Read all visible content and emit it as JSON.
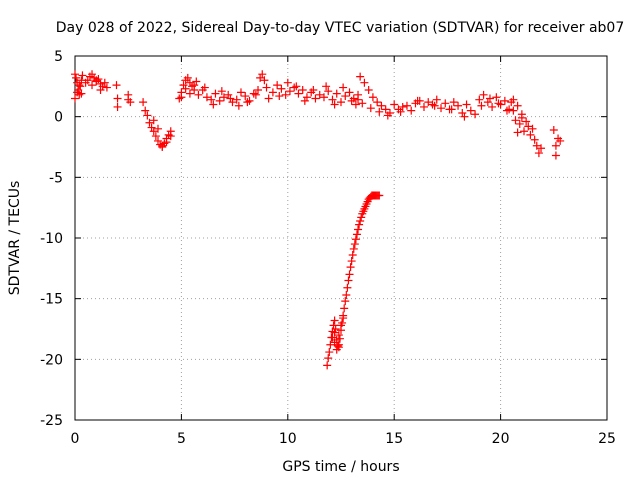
{
  "chart_data": {
    "type": "scatter",
    "title": "Day 028 of 2022, Sidereal Day-to-day VTEC variation (SDTVAR) for receiver ab07",
    "xlabel": "GPS time / hours",
    "ylabel": "SDTVAR / TECUs",
    "xlim": [
      0,
      25
    ],
    "ylim": [
      -25,
      5
    ],
    "xticks": [
      0,
      5,
      10,
      15,
      20,
      25
    ],
    "yticks": [
      5,
      0,
      -5,
      -10,
      -15,
      -20,
      -25
    ],
    "x_tick_labels": [
      "0",
      "5",
      "10",
      "15",
      "20",
      "25"
    ],
    "y_tick_labels": [
      "5",
      "0",
      "-5",
      "-10",
      "-15",
      "-20",
      "-25"
    ],
    "grid": true,
    "marker": "plus",
    "color": "#ff0000",
    "series": [
      {
        "name": "SDTVAR",
        "x": [
          0.0,
          0.05,
          0.1,
          0.15,
          0.2,
          0.25,
          0.3,
          0.35,
          0.0,
          0.1,
          0.2,
          0.3,
          0.5,
          0.6,
          0.7,
          0.8,
          0.9,
          1.0,
          1.1,
          1.2,
          1.3,
          1.4,
          1.5,
          0.8,
          1.0,
          1.2,
          1.95,
          2.0,
          2.0,
          2.5,
          2.6,
          2.5,
          3.2,
          3.3,
          3.4,
          3.5,
          3.6,
          3.7,
          3.8,
          3.9,
          4.0,
          4.1,
          4.2,
          4.3,
          4.4,
          4.5,
          3.7,
          3.9,
          4.1,
          4.3,
          4.5,
          4.9,
          5.0,
          5.1,
          5.2,
          5.3,
          5.4,
          5.5,
          5.6,
          5.7,
          5.0,
          5.2,
          5.4,
          5.6,
          5.8,
          6.0,
          6.2,
          6.4,
          6.6,
          6.8,
          7.0,
          7.2,
          7.4,
          6.1,
          6.5,
          6.9,
          7.3,
          7.6,
          7.8,
          8.0,
          8.2,
          8.4,
          8.6,
          8.7,
          8.8,
          8.9,
          9.0,
          9.1,
          7.7,
          8.1,
          8.5,
          9.3,
          9.5,
          9.7,
          9.9,
          10.1,
          10.3,
          10.5,
          10.7,
          10.9,
          11.1,
          11.3,
          11.5,
          9.6,
          10.0,
          10.4,
          10.8,
          11.2,
          11.7,
          11.9,
          12.1,
          12.3,
          12.5,
          12.7,
          12.9,
          13.1,
          13.3,
          11.8,
          12.2,
          12.6,
          13.0,
          13.4,
          13.6,
          13.8,
          14.0,
          14.2,
          14.4,
          14.6,
          14.8,
          13.5,
          13.9,
          14.3,
          14.7,
          13.2,
          13.3,
          15.0,
          15.2,
          15.4,
          15.6,
          15.8,
          16.0,
          16.2,
          16.4,
          16.6,
          16.8,
          17.0,
          17.2,
          17.4,
          17.6,
          17.8,
          18.0,
          18.2,
          18.4,
          18.6,
          18.8,
          15.3,
          16.1,
          16.9,
          17.7,
          18.3,
          19.0,
          19.2,
          19.4,
          19.6,
          19.8,
          20.0,
          20.2,
          20.4,
          19.1,
          19.5,
          19.9,
          20.3,
          20.5,
          20.6,
          20.7,
          20.8,
          20.9,
          21.0,
          21.1,
          21.2,
          21.3,
          21.4,
          21.5,
          21.6,
          21.7,
          21.8,
          21.9,
          20.6,
          20.8,
          21.0,
          22.5,
          22.6,
          22.7,
          22.8,
          22.6,
          11.85,
          11.9,
          11.95,
          12.0,
          12.05,
          12.1,
          12.15,
          12.2,
          12.25,
          12.3,
          12.35,
          12.4,
          12.45,
          12.5,
          12.55,
          12.6,
          12.65,
          12.7,
          12.75,
          12.8,
          12.85,
          12.9,
          12.95,
          13.0,
          13.05,
          13.1,
          13.15,
          13.2,
          13.25,
          13.3,
          13.35,
          13.4,
          13.45,
          13.5,
          13.55,
          13.6,
          13.65,
          13.7,
          13.75,
          13.8,
          13.85,
          13.9,
          13.95,
          14.0,
          14.05,
          14.1,
          14.15,
          14.2,
          14.25,
          14.3,
          12.1,
          12.2,
          12.3,
          12.4,
          12.5,
          12.6,
          12.2,
          12.4
        ],
        "y": [
          3.5,
          3.2,
          2.8,
          2.2,
          1.8,
          2.5,
          3.0,
          3.4,
          1.5,
          2.0,
          2.6,
          1.9,
          2.8,
          3.0,
          3.3,
          3.5,
          3.2,
          2.9,
          3.1,
          2.7,
          2.5,
          2.8,
          2.4,
          2.6,
          3.0,
          2.2,
          2.6,
          1.5,
          0.8,
          1.8,
          1.2,
          1.4,
          1.2,
          0.5,
          0.1,
          -0.5,
          -0.9,
          -1.2,
          -1.6,
          -2.0,
          -2.3,
          -2.5,
          -2.2,
          -1.8,
          -1.5,
          -1.2,
          -0.3,
          -1.0,
          -2.4,
          -2.1,
          -1.6,
          1.5,
          2.0,
          2.6,
          3.0,
          3.2,
          2.8,
          2.5,
          2.2,
          2.9,
          1.6,
          2.3,
          1.9,
          2.6,
          1.8,
          2.2,
          1.6,
          1.4,
          1.9,
          1.3,
          1.6,
          1.8,
          1.2,
          2.4,
          1.0,
          2.1,
          1.5,
          1.4,
          2.0,
          1.7,
          1.3,
          1.9,
          2.2,
          3.2,
          3.5,
          3.0,
          2.4,
          1.5,
          0.9,
          1.2,
          1.8,
          2.0,
          2.6,
          2.3,
          1.8,
          2.1,
          2.4,
          1.9,
          2.2,
          1.6,
          2.0,
          1.5,
          1.8,
          1.7,
          2.8,
          2.5,
          1.3,
          2.2,
          1.6,
          2.1,
          1.4,
          1.9,
          1.2,
          1.7,
          2.0,
          1.5,
          1.8,
          2.5,
          1.0,
          2.4,
          1.3,
          3.3,
          2.8,
          2.2,
          1.6,
          1.2,
          0.9,
          0.6,
          0.3,
          1.1,
          0.7,
          0.4,
          0.1,
          1.0,
          1.4,
          1.0,
          0.6,
          0.8,
          0.9,
          0.5,
          1.1,
          1.3,
          0.8,
          1.2,
          1.0,
          1.4,
          0.7,
          1.1,
          0.6,
          1.2,
          0.9,
          0.3,
          1.0,
          0.5,
          0.2,
          0.4,
          1.3,
          0.9,
          0.6,
          0.0,
          1.4,
          1.8,
          1.2,
          0.8,
          1.6,
          1.0,
          1.3,
          0.6,
          0.9,
          1.5,
          1.1,
          0.5,
          1.2,
          0.5,
          -0.3,
          0.9,
          -0.6,
          -0.1,
          -1.2,
          -0.4,
          -0.8,
          -1.5,
          -1.0,
          -1.9,
          -2.4,
          -3.0,
          -2.6,
          1.4,
          -1.3,
          0.2,
          -1.1,
          -2.4,
          -1.8,
          -2.0,
          -3.2,
          -20.5,
          -19.9,
          -19.4,
          -18.8,
          -18.2,
          -17.7,
          -17.2,
          -16.8,
          -17.5,
          -18.4,
          -18.9,
          -19.0,
          -18.3,
          -17.6,
          -17.0,
          -16.4,
          -15.8,
          -15.2,
          -14.7,
          -14.1,
          -13.5,
          -13.0,
          -12.4,
          -11.9,
          -11.4,
          -10.9,
          -10.5,
          -10.1,
          -9.7,
          -9.3,
          -8.9,
          -8.6,
          -8.3,
          -8.0,
          -7.8,
          -7.6,
          -7.4,
          -7.2,
          -7.0,
          -6.8,
          -6.7,
          -6.6,
          -6.5,
          -6.5,
          -6.5,
          -6.5,
          -6.5,
          -6.5,
          -6.5,
          -6.5,
          -18.2,
          -18.6,
          -19.2,
          -18.0,
          -17.2,
          -16.6,
          -17.8,
          -18.8
        ]
      }
    ]
  }
}
